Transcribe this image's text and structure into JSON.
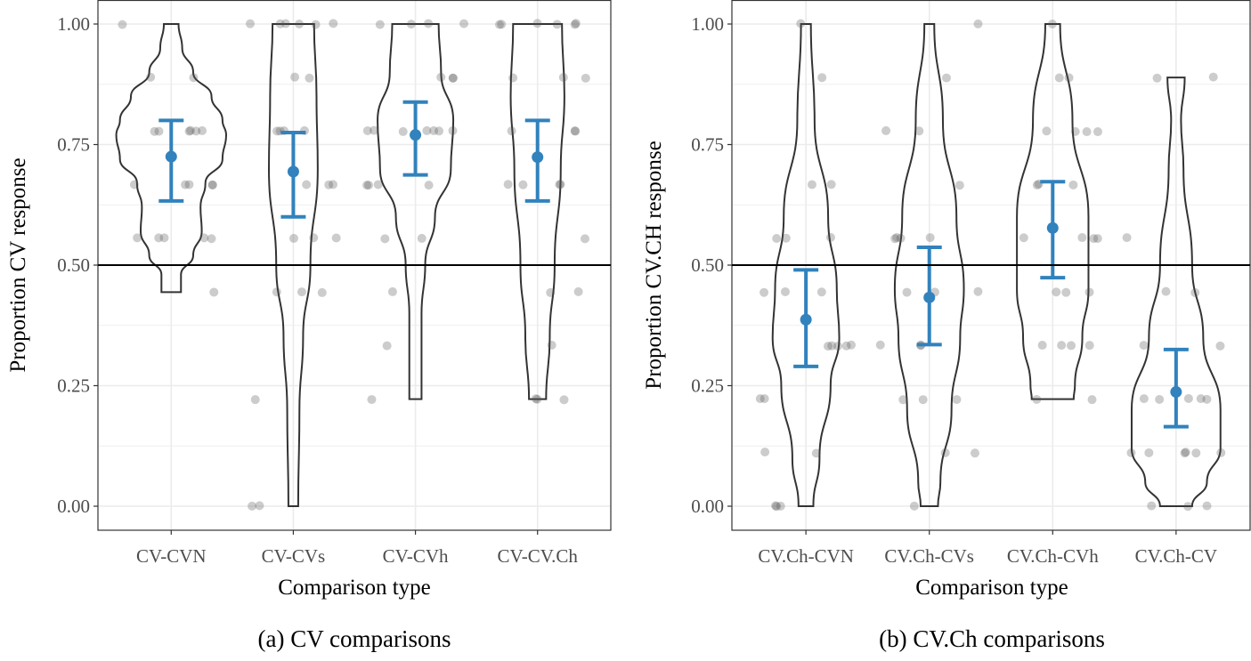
{
  "chart_data": [
    {
      "type": "violin",
      "caption": "(a) CV comparisons",
      "xlabel": "Comparison type",
      "ylabel": "Proportion CV response",
      "ylim": [
        0,
        1
      ],
      "yticks": [
        "0.00",
        "0.25",
        "0.50",
        "0.75",
        "1.00"
      ],
      "reference_line": 0.5,
      "grid": true,
      "categories": [
        "CV-CVN",
        "CV-CVs",
        "CV-CVh",
        "CV-CV.Ch"
      ],
      "means": [
        0.725,
        0.694,
        0.77,
        0.724
      ],
      "ci_low": [
        0.633,
        0.6,
        0.687,
        0.633
      ],
      "ci_high": [
        0.8,
        0.775,
        0.838,
        0.8
      ],
      "density_profiles": [
        [
          [
            1.0,
            0.06
          ],
          [
            0.95,
            0.09
          ],
          [
            0.9,
            0.18
          ],
          [
            0.85,
            0.33
          ],
          [
            0.8,
            0.42
          ],
          [
            0.77,
            0.45
          ],
          [
            0.72,
            0.42
          ],
          [
            0.67,
            0.28
          ],
          [
            0.62,
            0.24
          ],
          [
            0.57,
            0.25
          ],
          [
            0.52,
            0.18
          ],
          [
            0.48,
            0.08
          ],
          [
            0.444,
            0.08
          ]
        ],
        [
          [
            1.0,
            0.17
          ],
          [
            0.85,
            0.19
          ],
          [
            0.7,
            0.2
          ],
          [
            0.5,
            0.14
          ],
          [
            0.35,
            0.08
          ],
          [
            0.2,
            0.05
          ],
          [
            0.0,
            0.04
          ]
        ],
        [
          [
            1.0,
            0.19
          ],
          [
            0.9,
            0.21
          ],
          [
            0.8,
            0.31
          ],
          [
            0.7,
            0.29
          ],
          [
            0.6,
            0.16
          ],
          [
            0.5,
            0.08
          ],
          [
            0.4,
            0.05
          ],
          [
            0.222,
            0.05
          ]
        ],
        [
          [
            1.0,
            0.2
          ],
          [
            0.85,
            0.22
          ],
          [
            0.7,
            0.19
          ],
          [
            0.5,
            0.14
          ],
          [
            0.35,
            0.1
          ],
          [
            0.222,
            0.07
          ]
        ]
      ],
      "points": [
        [
          1,
          0.889,
          0.889,
          0.778,
          0.778,
          0.778,
          0.778,
          0.778,
          0.778,
          0.667,
          0.667,
          0.667,
          0.667,
          0.667,
          0.556,
          0.556,
          0.556,
          0.556,
          0.556,
          0.444
        ],
        [
          1,
          1,
          1,
          1,
          1,
          1,
          0.889,
          0.889,
          0.778,
          0.778,
          0.778,
          0.778,
          0.667,
          0.667,
          0.667,
          0.556,
          0.556,
          0.556,
          0.444,
          0.444,
          0.444,
          0.222,
          0,
          0
        ],
        [
          1,
          1,
          1,
          1,
          0.889,
          0.889,
          0.889,
          0.778,
          0.778,
          0.778,
          0.778,
          0.778,
          0.778,
          0.778,
          0.667,
          0.667,
          0.667,
          0.667,
          0.556,
          0.556,
          0.444,
          0.333,
          0.222
        ],
        [
          1,
          1,
          1,
          1,
          1,
          1,
          0.889,
          0.889,
          0.889,
          0.778,
          0.778,
          0.778,
          0.667,
          0.667,
          0.667,
          0.667,
          0.556,
          0.444,
          0.444,
          0.333,
          0.222,
          0.222,
          0.222
        ]
      ]
    },
    {
      "type": "violin",
      "caption": "(b) CV.Ch comparisons",
      "xlabel": "Comparison type",
      "ylabel": "Proportion CV.CH response",
      "ylim": [
        0,
        1
      ],
      "yticks": [
        "0.00",
        "0.25",
        "0.50",
        "0.75",
        "1.00"
      ],
      "reference_line": 0.5,
      "grid": true,
      "categories": [
        "CV.Ch-CVN",
        "CV.Ch-CVs",
        "CV.Ch-CVh",
        "CV.Ch-CV"
      ],
      "means": [
        0.387,
        0.433,
        0.577,
        0.237
      ],
      "ci_low": [
        0.29,
        0.335,
        0.474,
        0.165
      ],
      "ci_high": [
        0.49,
        0.537,
        0.673,
        0.325
      ],
      "density_profiles": [
        [
          [
            1.0,
            0.04
          ],
          [
            0.8,
            0.07
          ],
          [
            0.6,
            0.18
          ],
          [
            0.45,
            0.25
          ],
          [
            0.35,
            0.27
          ],
          [
            0.25,
            0.2
          ],
          [
            0.1,
            0.11
          ],
          [
            0.0,
            0.06
          ]
        ],
        [
          [
            1.0,
            0.04
          ],
          [
            0.8,
            0.11
          ],
          [
            0.6,
            0.22
          ],
          [
            0.45,
            0.28
          ],
          [
            0.35,
            0.25
          ],
          [
            0.2,
            0.18
          ],
          [
            0.05,
            0.09
          ],
          [
            0.0,
            0.07
          ]
        ],
        [
          [
            1.0,
            0.06
          ],
          [
            0.8,
            0.16
          ],
          [
            0.6,
            0.29
          ],
          [
            0.45,
            0.29
          ],
          [
            0.35,
            0.24
          ],
          [
            0.25,
            0.18
          ],
          [
            0.222,
            0.17
          ]
        ],
        [
          [
            0.889,
            0.07
          ],
          [
            0.8,
            0.04
          ],
          [
            0.7,
            0.06
          ],
          [
            0.5,
            0.13
          ],
          [
            0.35,
            0.22
          ],
          [
            0.2,
            0.36
          ],
          [
            0.12,
            0.36
          ],
          [
            0.05,
            0.25
          ],
          [
            0.0,
            0.13
          ]
        ]
      ],
      "points": [
        [
          1,
          0.889,
          0.667,
          0.667,
          0.556,
          0.556,
          0.556,
          0.444,
          0.444,
          0.444,
          0.333,
          0.333,
          0.333,
          0.333,
          0.333,
          0.222,
          0.222,
          0.111,
          0.111,
          0,
          0,
          0
        ],
        [
          1,
          0.889,
          0.778,
          0.778,
          0.667,
          0.556,
          0.556,
          0.556,
          0.556,
          0.444,
          0.444,
          0.444,
          0.333,
          0.333,
          0.333,
          0.222,
          0.222,
          0.222,
          0.111,
          0.111,
          0
        ],
        [
          1,
          0.889,
          0.889,
          0.778,
          0.778,
          0.778,
          0.778,
          0.667,
          0.667,
          0.667,
          0.556,
          0.556,
          0.556,
          0.556,
          0.444,
          0.444,
          0.444,
          0.333,
          0.333,
          0.333,
          0.333,
          0.222,
          0.222
        ],
        [
          0.889,
          0.889,
          0.556,
          0.444,
          0.444,
          0.333,
          0.333,
          0.222,
          0.222,
          0.222,
          0.222,
          0.222,
          0.111,
          0.111,
          0.111,
          0.111,
          0.111,
          0.111,
          0,
          0,
          0
        ]
      ]
    }
  ],
  "colors": {
    "mean_ci": "#3182bd",
    "points": "#555555",
    "violin_outline": "#333333",
    "grid": "#ebebeb",
    "tick_text": "#4d4d4d"
  }
}
